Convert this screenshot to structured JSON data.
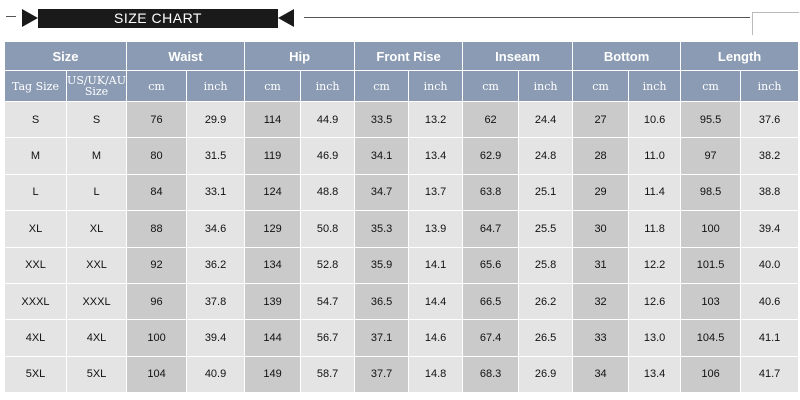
{
  "banner": {
    "title": "SIZE CHART"
  },
  "table": {
    "groups": [
      "Size",
      "Waist",
      "Hip",
      "Front Rise",
      "Inseam",
      "Bottom",
      "Length"
    ],
    "unit_headers": [
      "Tag Size",
      "US/UK/AU Size",
      "cm",
      "inch",
      "cm",
      "inch",
      "cm",
      "inch",
      "cm",
      "inch",
      "cm",
      "inch",
      "cm",
      "inch"
    ],
    "rows": [
      [
        "S",
        "S",
        "76",
        "29.9",
        "114",
        "44.9",
        "33.5",
        "13.2",
        "62",
        "24.4",
        "27",
        "10.6",
        "95.5",
        "37.6"
      ],
      [
        "M",
        "M",
        "80",
        "31.5",
        "119",
        "46.9",
        "34.1",
        "13.4",
        "62.9",
        "24.8",
        "28",
        "11.0",
        "97",
        "38.2"
      ],
      [
        "L",
        "L",
        "84",
        "33.1",
        "124",
        "48.8",
        "34.7",
        "13.7",
        "63.8",
        "25.1",
        "29",
        "11.4",
        "98.5",
        "38.8"
      ],
      [
        "XL",
        "XL",
        "88",
        "34.6",
        "129",
        "50.8",
        "35.3",
        "13.9",
        "64.7",
        "25.5",
        "30",
        "11.8",
        "100",
        "39.4"
      ],
      [
        "XXL",
        "XXL",
        "92",
        "36.2",
        "134",
        "52.8",
        "35.9",
        "14.1",
        "65.6",
        "25.8",
        "31",
        "12.2",
        "101.5",
        "40.0"
      ],
      [
        "XXXL",
        "XXXL",
        "96",
        "37.8",
        "139",
        "54.7",
        "36.5",
        "14.4",
        "66.5",
        "26.2",
        "32",
        "12.6",
        "103",
        "40.6"
      ],
      [
        "4XL",
        "4XL",
        "100",
        "39.4",
        "144",
        "56.7",
        "37.1",
        "14.6",
        "67.4",
        "26.5",
        "33",
        "13.0",
        "104.5",
        "41.1"
      ],
      [
        "5XL",
        "5XL",
        "104",
        "40.9",
        "149",
        "58.7",
        "37.7",
        "14.8",
        "68.3",
        "26.9",
        "34",
        "13.4",
        "106",
        "41.7"
      ]
    ]
  },
  "colors": {
    "header_bg": "#8a9bb3",
    "cell_light": "#e4e4e4",
    "cell_dark": "#cacaca",
    "banner_bg": "#1a1a1a"
  }
}
